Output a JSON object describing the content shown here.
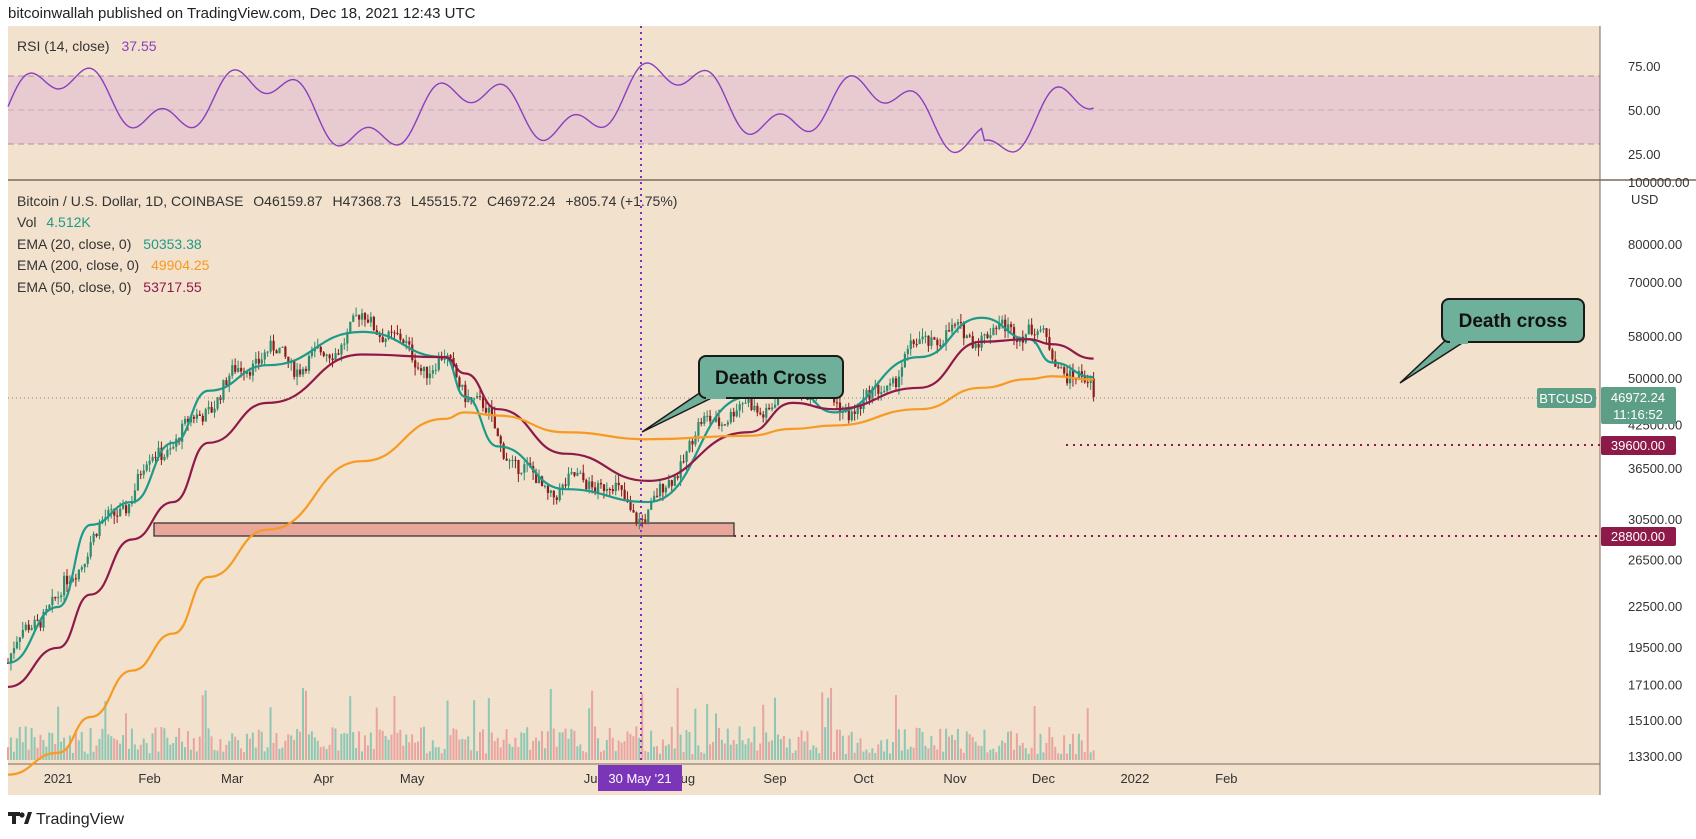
{
  "header": {
    "publisher_line": "bitcoinwallah published on TradingView.com, Dec 18, 2021 12:43 UTC"
  },
  "footer": {
    "brand": "TradingView"
  },
  "colors": {
    "background": "#f2e1cc",
    "ema20": "#1e9a8a",
    "ema50": "#8e1a4a",
    "ema200": "#f79a22",
    "rsi": "#8a3fbf",
    "up": "#2e8b6e",
    "down": "#8b1c1c",
    "callout": "#6fb09a",
    "crosshair": "#7a35b8",
    "price_label": "#5d9e86",
    "level_label": "#8e1a4a"
  },
  "rsi_panel": {
    "legend_label": "RSI (14, close)",
    "legend_value": "37.55",
    "axis": [
      "75.00",
      "50.00",
      "25.00"
    ]
  },
  "price_panel": {
    "symbol_line": "Bitcoin / U.S. Dollar, 1D, COINBASE",
    "ohlc": {
      "open": "O46159.87",
      "high": "H47368.73",
      "low": "L45515.72",
      "close": "C46972.24",
      "change": "+805.74 (+1.75%)"
    },
    "volume": {
      "label": "Vol",
      "value": "4.512K"
    },
    "ema_legend": [
      {
        "label": "EMA (20, close, 0)",
        "value": "50353.38",
        "color": "#1e9a8a"
      },
      {
        "label": "EMA (200, close, 0)",
        "value": "49904.25",
        "color": "#f79a22"
      },
      {
        "label": "EMA (50, close, 0)",
        "value": "53717.55",
        "color": "#8e1a4a"
      }
    ],
    "axis_top": "100000.00",
    "currency": "USD",
    "axis": [
      "80000.00",
      "70000.00",
      "58000.00",
      "50000.00",
      "42500.00",
      "36500.00",
      "30500.00",
      "26500.00",
      "22500.00",
      "19500.00",
      "17100.00",
      "15100.00",
      "13300.00"
    ],
    "last_price": {
      "ticker": "BTCUSD",
      "value": "46972.24",
      "countdown": "11:16:52"
    },
    "levels": [
      "39600.00",
      "28800.00"
    ],
    "annotations": [
      "Death Cross",
      "Death cross"
    ]
  },
  "time_axis": {
    "labels": [
      "2021",
      "Feb",
      "Mar",
      "Apr",
      "May",
      "Jul",
      "Aug",
      "Sep",
      "Oct",
      "Nov",
      "Dec",
      "2022",
      "Feb"
    ],
    "crosshair_label": "30 May '21"
  },
  "chart_data": {
    "type": "line",
    "title": "Bitcoin / U.S. Dollar, 1D, COINBASE",
    "x": [
      "Dec 15 '20",
      "Jan 1 '21",
      "Jan 12",
      "Jan 26",
      "Feb 9",
      "Feb 21",
      "Mar 13",
      "Apr 14",
      "May 12",
      "May 19",
      "May 30",
      "Jun 22",
      "Jul 20",
      "Aug 23",
      "Sep 7",
      "Sep 21",
      "Oct 20",
      "Nov 10",
      "Nov 26",
      "Dec 4",
      "Dec 18"
    ],
    "series": [
      {
        "name": "EMA (20, close, 0)",
        "values": [
          18500,
          22500,
          30000,
          32500,
          40000,
          48000,
          52500,
          59000,
          54000,
          47000,
          39500,
          34000,
          32500,
          47000,
          48500,
          44500,
          54000,
          62000,
          57500,
          53000,
          50353
        ]
      },
      {
        "name": "EMA (50, close, 0)",
        "values": [
          17000,
          19500,
          23500,
          28500,
          32500,
          40000,
          46000,
          54500,
          54000,
          51000,
          45000,
          38500,
          35000,
          41500,
          46000,
          45000,
          48500,
          57000,
          57500,
          56500,
          53718
        ]
      },
      {
        "name": "EMA (200, close, 0)",
        "values": [
          12500,
          13500,
          15300,
          18000,
          20500,
          25000,
          29500,
          37500,
          43500,
          44500,
          44000,
          41500,
          40500,
          41000,
          42000,
          42500,
          45000,
          48500,
          50000,
          50500,
          49904
        ]
      }
    ],
    "annotations": [
      "Death Cross",
      "Death cross"
    ],
    "levels": [
      39600,
      28800
    ],
    "last_close": 46972.24,
    "ylim": [
      13300,
      100000
    ],
    "yscale": "log",
    "legend": "top-left"
  }
}
